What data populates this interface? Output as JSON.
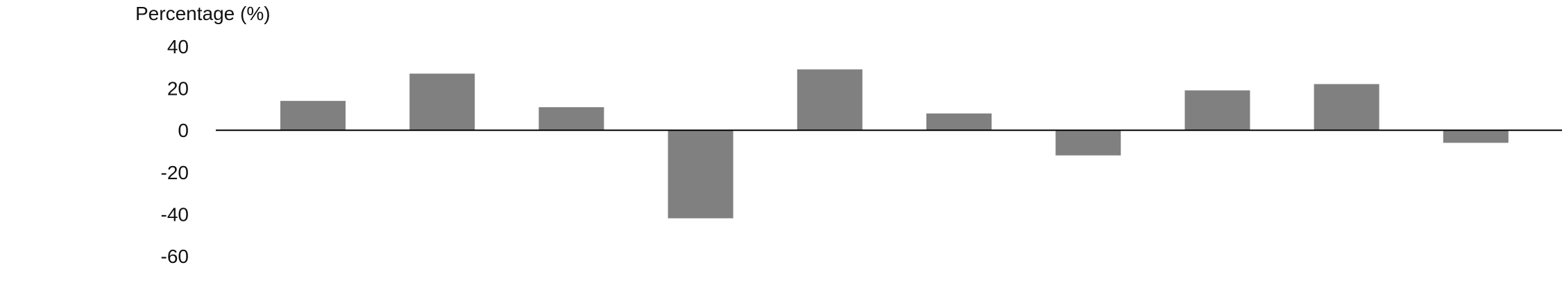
{
  "chart_data": {
    "type": "bar",
    "title": "",
    "xlabel": "",
    "ylabel": "Percentage (%)",
    "ylim": [
      -60,
      40
    ],
    "yticks": [
      40,
      20,
      0,
      -20,
      -40,
      -60
    ],
    "grid": false,
    "legend": "none",
    "categories": [
      "",
      "",
      "",
      "",
      "",
      "",
      "",
      "",
      "",
      ""
    ],
    "values": [
      14,
      27,
      11,
      -42,
      29,
      8,
      -12,
      19,
      22,
      -6
    ]
  },
  "colors": {
    "bar": "#808080",
    "zero_line": "#000000",
    "text": "#111111",
    "background": "#ffffff"
  }
}
